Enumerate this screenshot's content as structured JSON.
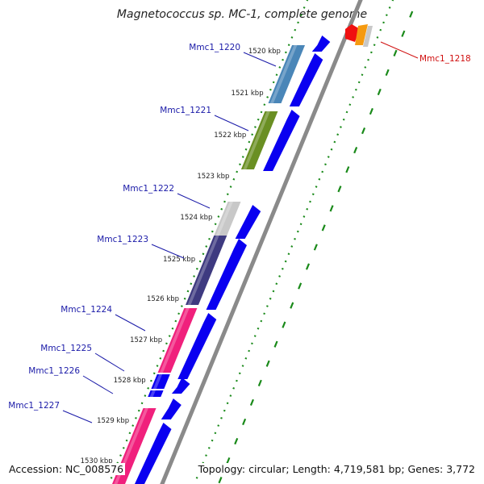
{
  "title": "Magnetococcus sp. MC-1, complete genome",
  "footer": {
    "accession_label": "Accession: NC_008576",
    "topology_label": "Topology: circular; Length: 4,719,581 bp; Genes: 3,772"
  },
  "colors": {
    "backbone": "#8a8a8a",
    "gene_blue": "#0a00f0",
    "tick_green": "#1a8a1a",
    "label_link": "#1a1aa8",
    "label_highlight": "#d01010"
  },
  "ticks": [
    {
      "label": "1520 kbp"
    },
    {
      "label": "1521 kbp"
    },
    {
      "label": "1522 kbp"
    },
    {
      "label": "1523 kbp"
    },
    {
      "label": "1524 kbp"
    },
    {
      "label": "1525 kbp"
    },
    {
      "label": "1526 kbp"
    },
    {
      "label": "1527 kbp"
    },
    {
      "label": "1528 kbp"
    },
    {
      "label": "1529 kbp"
    },
    {
      "label": "1530 kbp"
    }
  ],
  "genes": [
    {
      "id": "Mmc1_1220",
      "color": "#4a86b8"
    },
    {
      "id": "Mmc1_1221",
      "color": "#6a8f23"
    },
    {
      "id": "Mmc1_1222",
      "color": "#c8c8c8"
    },
    {
      "id": "Mmc1_1223",
      "color": "#3e3a80"
    },
    {
      "id": "Mmc1_1224",
      "color": "#f0207c"
    },
    {
      "id": "Mmc1_1225",
      "color": "#0a00f0"
    },
    {
      "id": "Mmc1_1226",
      "color": "#0a00f0"
    },
    {
      "id": "Mmc1_1227",
      "color": "#f0207c"
    }
  ],
  "highlight": {
    "id": "Mmc1_1218",
    "colors": [
      "#f01010",
      "#f59a10",
      "#c8c8c8"
    ]
  }
}
